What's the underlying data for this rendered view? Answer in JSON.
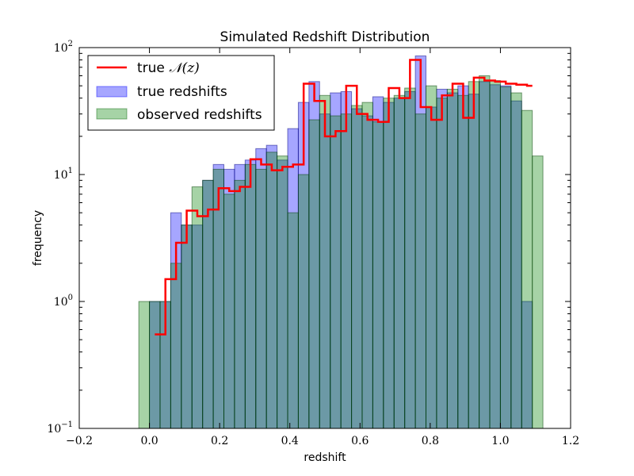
{
  "chart_data": {
    "type": "bar",
    "title": "Simulated Redshift Distribution",
    "xlabel": "redshift",
    "ylabel": "frequency",
    "yscale": "log",
    "xlim": [
      -0.2,
      1.2
    ],
    "ylim": [
      0.1,
      100
    ],
    "grid": false,
    "legend_position": "top-left",
    "x_ticks": [
      "−0.2",
      "0.0",
      "0.2",
      "0.4",
      "0.6",
      "0.8",
      "1.0",
      "1.2"
    ],
    "x_tick_values": [
      -0.2,
      0.0,
      0.2,
      0.4,
      0.6,
      0.8,
      1.0,
      1.2
    ],
    "y_ticks": [
      {
        "base": "10",
        "exp": "−1",
        "value": 0.1
      },
      {
        "base": "10",
        "exp": "0",
        "value": 1
      },
      {
        "base": "10",
        "exp": "1",
        "value": 10
      },
      {
        "base": "10",
        "exp": "2",
        "value": 100
      }
    ],
    "series": [
      {
        "name": "true redshifts",
        "kind": "histogram",
        "color": "#0000ff",
        "bin_edges": [
          0.0,
          0.0303,
          0.0606,
          0.0909,
          0.1212,
          0.1515,
          0.1818,
          0.2121,
          0.2424,
          0.2727,
          0.303,
          0.3333,
          0.3636,
          0.3939,
          0.4242,
          0.4545,
          0.4848,
          0.5152,
          0.5455,
          0.5758,
          0.6061,
          0.6364,
          0.6667,
          0.697,
          0.7273,
          0.7576,
          0.7879,
          0.8182,
          0.8485,
          0.8788,
          0.9091,
          0.9394,
          0.9697,
          1.0,
          1.0303,
          1.0606,
          1.0909
        ],
        "values": [
          1,
          1,
          5,
          4,
          4,
          9,
          12,
          11,
          12,
          13,
          16,
          17,
          13,
          23,
          37,
          54,
          30,
          44,
          45,
          33,
          29,
          41,
          37,
          40,
          45,
          86,
          34,
          47,
          44,
          50,
          43,
          54,
          51,
          50,
          38,
          1
        ]
      },
      {
        "name": "observed redshifts",
        "kind": "histogram",
        "color": "#008000",
        "bin_edges": [
          -0.0303,
          0.0,
          0.0303,
          0.0606,
          0.0909,
          0.1212,
          0.1515,
          0.1818,
          0.2121,
          0.2424,
          0.2727,
          0.303,
          0.3333,
          0.3636,
          0.3939,
          0.4242,
          0.4545,
          0.4848,
          0.5152,
          0.5455,
          0.5758,
          0.6061,
          0.6364,
          0.6667,
          0.697,
          0.7273,
          0.7576,
          0.7879,
          0.8182,
          0.8485,
          0.8788,
          0.9091,
          0.9394,
          0.9697,
          1.0,
          1.0303,
          1.0606,
          1.0909,
          1.1212
        ],
        "values": [
          1,
          1,
          1,
          2,
          4,
          8,
          9,
          11,
          7,
          9,
          12,
          11,
          15,
          14,
          5,
          10,
          27,
          42,
          29,
          30,
          35,
          37,
          26,
          40,
          42,
          48,
          30,
          50,
          40,
          47,
          42,
          54,
          60,
          55,
          49,
          44,
          32,
          14
        ]
      },
      {
        "name": "true 𝒩(z)",
        "kind": "step",
        "color": "#ff0000",
        "x": [
          0.0152,
          0.0455,
          0.0758,
          0.1061,
          0.1364,
          0.1667,
          0.197,
          0.2273,
          0.2576,
          0.2879,
          0.3182,
          0.3485,
          0.3788,
          0.4091,
          0.4394,
          0.4697,
          0.5,
          0.5303,
          0.5606,
          0.5909,
          0.6212,
          0.6515,
          0.6818,
          0.7121,
          0.7424,
          0.7727,
          0.803,
          0.8333,
          0.8636,
          0.8939,
          0.9242,
          0.9545,
          0.9848,
          1.0152,
          1.0455,
          1.0758
        ],
        "y": [
          0.55,
          1.5,
          2.9,
          5.2,
          4.7,
          5.3,
          7.8,
          7.4,
          8.0,
          13.2,
          12.0,
          10.8,
          11.5,
          12.0,
          52,
          38,
          20,
          22,
          50,
          30,
          27,
          26,
          48,
          40,
          80,
          34,
          27,
          42,
          52,
          28,
          58,
          55,
          54,
          52,
          51,
          50
        ]
      }
    ],
    "legend": {
      "true_label_prefix": "true",
      "true_label_math": "𝒩(z)",
      "items": [
        "true redshifts",
        "observed redshifts"
      ]
    }
  }
}
